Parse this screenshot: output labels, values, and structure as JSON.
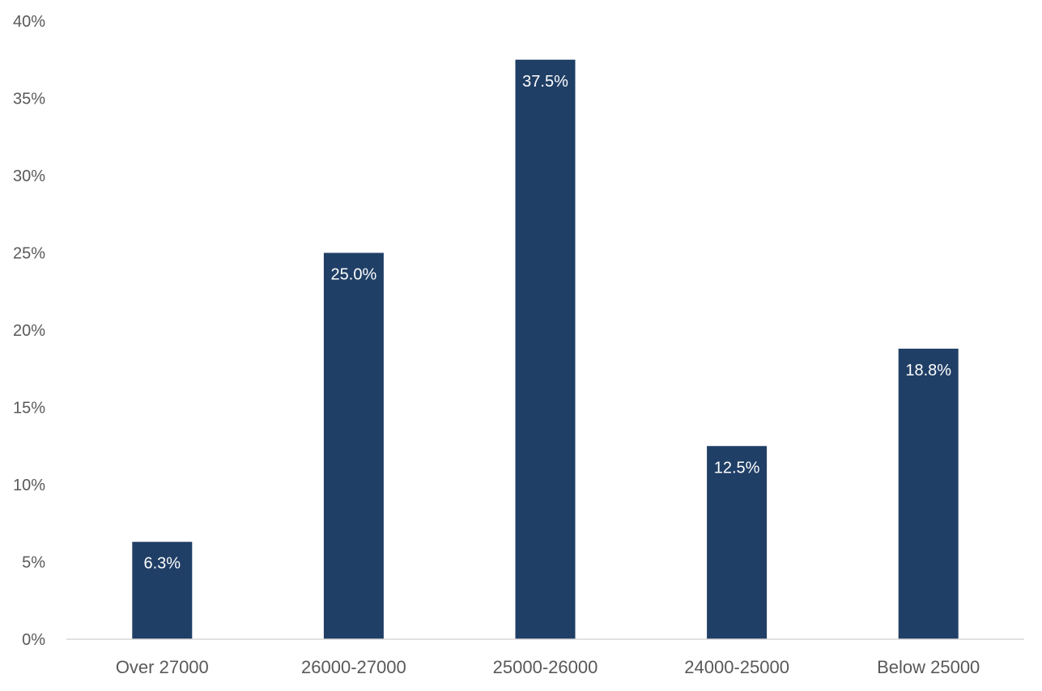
{
  "chart_data": {
    "type": "bar",
    "title": "",
    "xlabel": "",
    "ylabel": "",
    "categories": [
      "Over 27000",
      "26000-27000",
      "25000-26000",
      "24000-25000",
      "Below 25000"
    ],
    "values": [
      6.3,
      25.0,
      37.5,
      12.5,
      18.8
    ],
    "data_labels": [
      "6.3%",
      "25.0%",
      "37.5%",
      "12.5%",
      "18.8%"
    ],
    "ylim": [
      0,
      40
    ],
    "yticks": [
      0,
      5,
      10,
      15,
      20,
      25,
      30,
      35,
      40
    ],
    "ytick_labels": [
      "0%",
      "5%",
      "10%",
      "15%",
      "20%",
      "25%",
      "30%",
      "35%",
      "40%"
    ],
    "bar_color": "#203f66",
    "axis_line_color": "#d9d9d9",
    "label_color": "#595959",
    "grid": false,
    "legend": "none"
  }
}
